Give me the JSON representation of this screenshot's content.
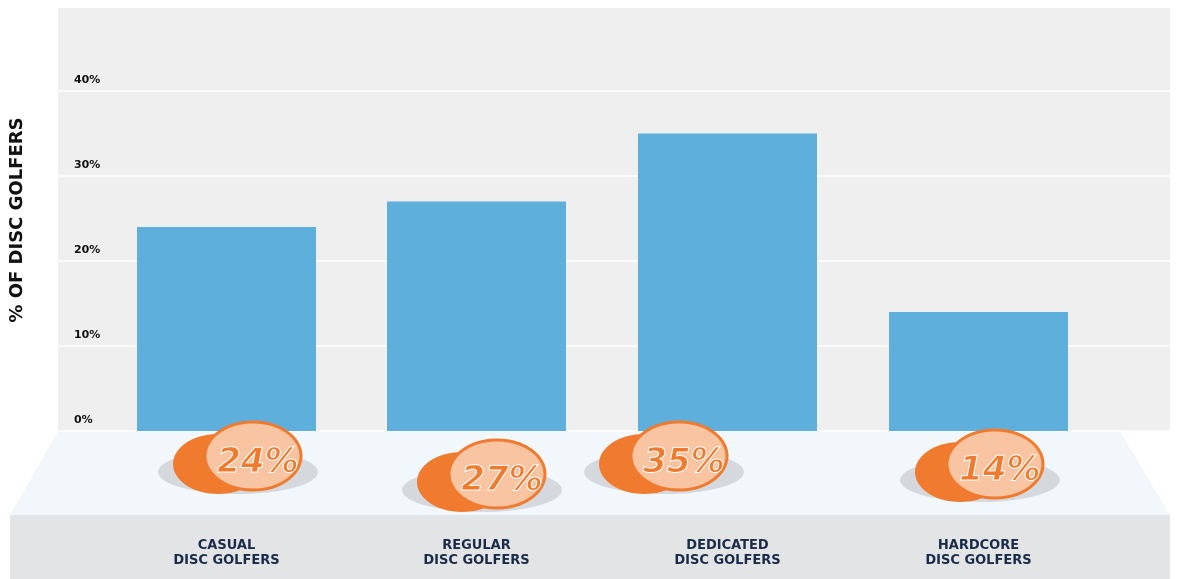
{
  "chart_data": {
    "type": "bar",
    "y_label": "% OF DISC GOLFERS",
    "categories": [
      "CASUAL\nDISC GOLFERS",
      "REGULAR\nDISC GOLFERS",
      "DEDICATED\nDISC GOLFERS",
      "HARDCORE\nDISC GOLFERS"
    ],
    "values": [
      24,
      27,
      35,
      14
    ],
    "value_labels": [
      "24%",
      "27%",
      "35%",
      "14%"
    ],
    "color": "#5fafdc",
    "ylim": [
      0,
      50
    ],
    "yticks": [
      {
        "value": 0,
        "label": "0%"
      },
      {
        "value": 10,
        "label": "10%"
      },
      {
        "value": 20,
        "label": "20%"
      },
      {
        "value": 30,
        "label": "30%"
      },
      {
        "value": 40,
        "label": "40%"
      }
    ],
    "grid": true
  }
}
